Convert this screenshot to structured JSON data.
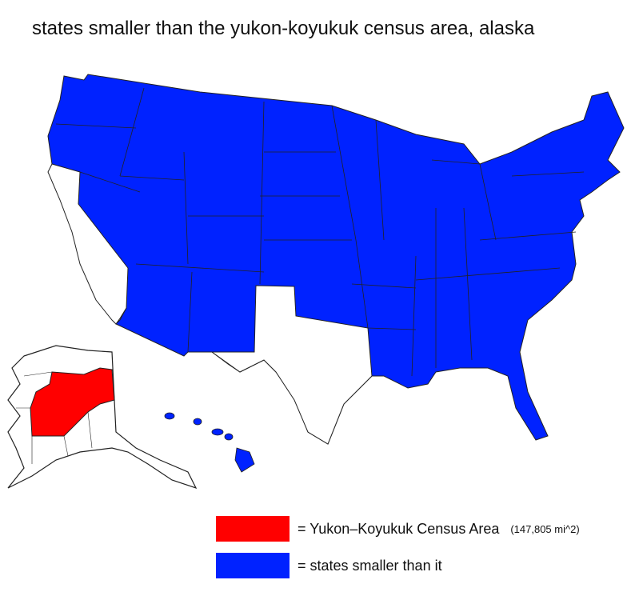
{
  "title": "states smaller than the yukon-koyukuk census area, alaska",
  "colors": {
    "highlight": "#ff0000",
    "smaller_states": "#0022ff",
    "other": "#ffffff",
    "border": "#333333"
  },
  "legend": [
    {
      "label": "= Yukon–Koyukuk Census Area",
      "note": "(147,805 mi^2)",
      "color": "#ff0000"
    },
    {
      "label": "= states smaller than it",
      "color": "#0022ff"
    }
  ],
  "regions": {
    "white": [
      "California",
      "Texas",
      "Alaska"
    ],
    "red": "Yukon–Koyukuk Census Area"
  }
}
